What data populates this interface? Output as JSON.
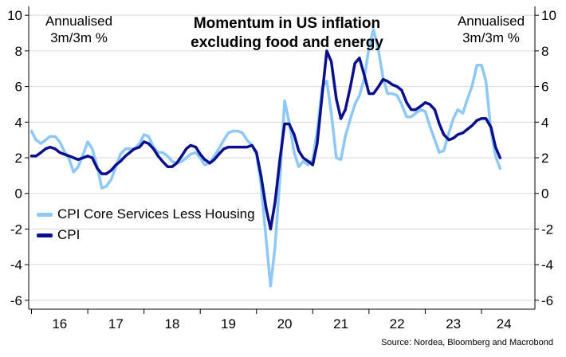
{
  "chart_data": {
    "type": "line",
    "title": "Momentum in US inflation excluding food and energy",
    "title_lines": [
      "Momentum in US inflation",
      "excluding food and energy"
    ],
    "ylabel_left": [
      "Annualised",
      "3m/3m %"
    ],
    "ylabel_right": [
      "Annualised",
      "3m/3m %"
    ],
    "ylim": [
      -6.5,
      10.5
    ],
    "yticks": [
      -6,
      -4,
      -2,
      0,
      2,
      4,
      6,
      8,
      10
    ],
    "xlim": [
      2015.95,
      2024.95
    ],
    "xtick_labels": [
      "16",
      "17",
      "18",
      "19",
      "20",
      "21",
      "22",
      "23",
      "24"
    ],
    "xtick_centers": [
      2016.5,
      2017.5,
      2018.5,
      2019.5,
      2020.5,
      2021.5,
      2022.5,
      2023.5,
      2024.4
    ],
    "grid": true,
    "legend_position": "lower-left",
    "source": "Source: Nordea, Bloomberg and Macrobond",
    "series": [
      {
        "name": "CPI Core Services Less Housing",
        "color": "#8ec8f6",
        "points": [
          [
            2016.0,
            3.5
          ],
          [
            2016.08,
            3.0
          ],
          [
            2016.17,
            2.8
          ],
          [
            2016.25,
            3.0
          ],
          [
            2016.33,
            3.2
          ],
          [
            2016.42,
            3.2
          ],
          [
            2016.5,
            2.9
          ],
          [
            2016.58,
            2.4
          ],
          [
            2016.67,
            1.9
          ],
          [
            2016.75,
            1.2
          ],
          [
            2016.83,
            1.5
          ],
          [
            2016.92,
            2.2
          ],
          [
            2017.0,
            2.9
          ],
          [
            2017.08,
            2.5
          ],
          [
            2017.17,
            1.5
          ],
          [
            2017.25,
            0.3
          ],
          [
            2017.33,
            0.4
          ],
          [
            2017.42,
            0.8
          ],
          [
            2017.5,
            1.5
          ],
          [
            2017.58,
            2.2
          ],
          [
            2017.67,
            2.5
          ],
          [
            2017.75,
            2.5
          ],
          [
            2017.83,
            2.5
          ],
          [
            2017.92,
            2.8
          ],
          [
            2018.0,
            3.3
          ],
          [
            2018.08,
            3.2
          ],
          [
            2018.17,
            2.6
          ],
          [
            2018.25,
            2.3
          ],
          [
            2018.33,
            2.3
          ],
          [
            2018.42,
            2.1
          ],
          [
            2018.5,
            1.8
          ],
          [
            2018.58,
            1.7
          ],
          [
            2018.67,
            1.8
          ],
          [
            2018.75,
            2.0
          ],
          [
            2018.83,
            2.2
          ],
          [
            2018.92,
            2.3
          ],
          [
            2019.0,
            2.0
          ],
          [
            2019.08,
            1.6
          ],
          [
            2019.17,
            1.7
          ],
          [
            2019.25,
            2.1
          ],
          [
            2019.33,
            2.5
          ],
          [
            2019.42,
            3.0
          ],
          [
            2019.5,
            3.4
          ],
          [
            2019.58,
            3.5
          ],
          [
            2019.67,
            3.5
          ],
          [
            2019.75,
            3.4
          ],
          [
            2019.83,
            3.0
          ],
          [
            2019.92,
            2.7
          ],
          [
            2020.0,
            2.2
          ],
          [
            2020.08,
            0.5
          ],
          [
            2020.17,
            -2.5
          ],
          [
            2020.25,
            -5.2
          ],
          [
            2020.33,
            -3.0
          ],
          [
            2020.42,
            1.0
          ],
          [
            2020.5,
            5.2
          ],
          [
            2020.58,
            4.0
          ],
          [
            2020.67,
            2.3
          ],
          [
            2020.75,
            1.5
          ],
          [
            2020.83,
            1.8
          ],
          [
            2020.92,
            1.6
          ],
          [
            2021.0,
            1.9
          ],
          [
            2021.08,
            3.5
          ],
          [
            2021.17,
            6.0
          ],
          [
            2021.25,
            6.3
          ],
          [
            2021.33,
            4.5
          ],
          [
            2021.42,
            2.0
          ],
          [
            2021.5,
            1.9
          ],
          [
            2021.58,
            3.2
          ],
          [
            2021.67,
            4.2
          ],
          [
            2021.75,
            5.0
          ],
          [
            2021.83,
            5.5
          ],
          [
            2021.92,
            6.5
          ],
          [
            2022.0,
            8.2
          ],
          [
            2022.08,
            9.2
          ],
          [
            2022.17,
            8.0
          ],
          [
            2022.25,
            6.5
          ],
          [
            2022.33,
            5.6
          ],
          [
            2022.42,
            5.6
          ],
          [
            2022.5,
            5.5
          ],
          [
            2022.58,
            5.0
          ],
          [
            2022.67,
            4.3
          ],
          [
            2022.75,
            4.3
          ],
          [
            2022.83,
            4.5
          ],
          [
            2022.92,
            4.7
          ],
          [
            2023.0,
            4.6
          ],
          [
            2023.08,
            3.8
          ],
          [
            2023.17,
            3.0
          ],
          [
            2023.25,
            2.3
          ],
          [
            2023.33,
            2.4
          ],
          [
            2023.42,
            3.4
          ],
          [
            2023.5,
            4.2
          ],
          [
            2023.58,
            4.7
          ],
          [
            2023.67,
            4.5
          ],
          [
            2023.75,
            5.3
          ],
          [
            2023.83,
            6.0
          ],
          [
            2023.92,
            7.2
          ],
          [
            2024.0,
            7.2
          ],
          [
            2024.08,
            6.3
          ],
          [
            2024.17,
            3.5
          ],
          [
            2024.25,
            2.1
          ],
          [
            2024.33,
            1.4
          ]
        ]
      },
      {
        "name": "CPI",
        "color": "#0a0f8c",
        "points": [
          [
            2016.0,
            2.1
          ],
          [
            2016.08,
            2.1
          ],
          [
            2016.17,
            2.3
          ],
          [
            2016.25,
            2.5
          ],
          [
            2016.33,
            2.6
          ],
          [
            2016.42,
            2.5
          ],
          [
            2016.5,
            2.3
          ],
          [
            2016.58,
            2.2
          ],
          [
            2016.67,
            2.1
          ],
          [
            2016.75,
            2.0
          ],
          [
            2016.83,
            1.9
          ],
          [
            2016.92,
            2.0
          ],
          [
            2017.0,
            2.1
          ],
          [
            2017.08,
            2.0
          ],
          [
            2017.17,
            1.4
          ],
          [
            2017.25,
            1.1
          ],
          [
            2017.33,
            1.1
          ],
          [
            2017.42,
            1.3
          ],
          [
            2017.5,
            1.6
          ],
          [
            2017.58,
            1.8
          ],
          [
            2017.67,
            2.1
          ],
          [
            2017.75,
            2.3
          ],
          [
            2017.83,
            2.5
          ],
          [
            2017.92,
            2.6
          ],
          [
            2018.0,
            2.9
          ],
          [
            2018.08,
            2.8
          ],
          [
            2018.17,
            2.5
          ],
          [
            2018.25,
            2.1
          ],
          [
            2018.33,
            1.8
          ],
          [
            2018.42,
            1.5
          ],
          [
            2018.5,
            1.5
          ],
          [
            2018.58,
            1.7
          ],
          [
            2018.67,
            2.1
          ],
          [
            2018.75,
            2.5
          ],
          [
            2018.83,
            2.7
          ],
          [
            2018.92,
            2.6
          ],
          [
            2019.0,
            2.2
          ],
          [
            2019.08,
            1.9
          ],
          [
            2019.17,
            1.7
          ],
          [
            2019.25,
            1.9
          ],
          [
            2019.33,
            2.2
          ],
          [
            2019.42,
            2.5
          ],
          [
            2019.5,
            2.6
          ],
          [
            2019.58,
            2.6
          ],
          [
            2019.67,
            2.6
          ],
          [
            2019.75,
            2.6
          ],
          [
            2019.83,
            2.6
          ],
          [
            2019.92,
            2.7
          ],
          [
            2020.0,
            2.3
          ],
          [
            2020.08,
            1.0
          ],
          [
            2020.17,
            -0.8
          ],
          [
            2020.25,
            -2.0
          ],
          [
            2020.33,
            -0.5
          ],
          [
            2020.42,
            2.0
          ],
          [
            2020.5,
            3.9
          ],
          [
            2020.58,
            3.9
          ],
          [
            2020.67,
            3.3
          ],
          [
            2020.75,
            2.4
          ],
          [
            2020.83,
            2.0
          ],
          [
            2020.92,
            1.8
          ],
          [
            2021.0,
            1.6
          ],
          [
            2021.08,
            2.8
          ],
          [
            2021.17,
            5.6
          ],
          [
            2021.25,
            8.0
          ],
          [
            2021.33,
            7.4
          ],
          [
            2021.42,
            5.3
          ],
          [
            2021.5,
            4.2
          ],
          [
            2021.58,
            4.7
          ],
          [
            2021.67,
            6.0
          ],
          [
            2021.75,
            7.3
          ],
          [
            2021.83,
            7.6
          ],
          [
            2021.92,
            6.6
          ],
          [
            2022.0,
            5.6
          ],
          [
            2022.08,
            5.6
          ],
          [
            2022.17,
            6.0
          ],
          [
            2022.25,
            6.4
          ],
          [
            2022.33,
            6.3
          ],
          [
            2022.42,
            6.1
          ],
          [
            2022.5,
            6.0
          ],
          [
            2022.58,
            5.8
          ],
          [
            2022.67,
            5.1
          ],
          [
            2022.75,
            4.7
          ],
          [
            2022.83,
            4.7
          ],
          [
            2022.92,
            4.9
          ],
          [
            2023.0,
            5.1
          ],
          [
            2023.08,
            5.0
          ],
          [
            2023.17,
            4.7
          ],
          [
            2023.25,
            3.9
          ],
          [
            2023.33,
            3.3
          ],
          [
            2023.42,
            3.0
          ],
          [
            2023.5,
            3.1
          ],
          [
            2023.58,
            3.3
          ],
          [
            2023.67,
            3.4
          ],
          [
            2023.75,
            3.6
          ],
          [
            2023.83,
            3.8
          ],
          [
            2023.92,
            4.1
          ],
          [
            2024.0,
            4.2
          ],
          [
            2024.08,
            4.2
          ],
          [
            2024.17,
            3.7
          ],
          [
            2024.25,
            2.6
          ],
          [
            2024.33,
            2.0
          ]
        ]
      }
    ]
  }
}
